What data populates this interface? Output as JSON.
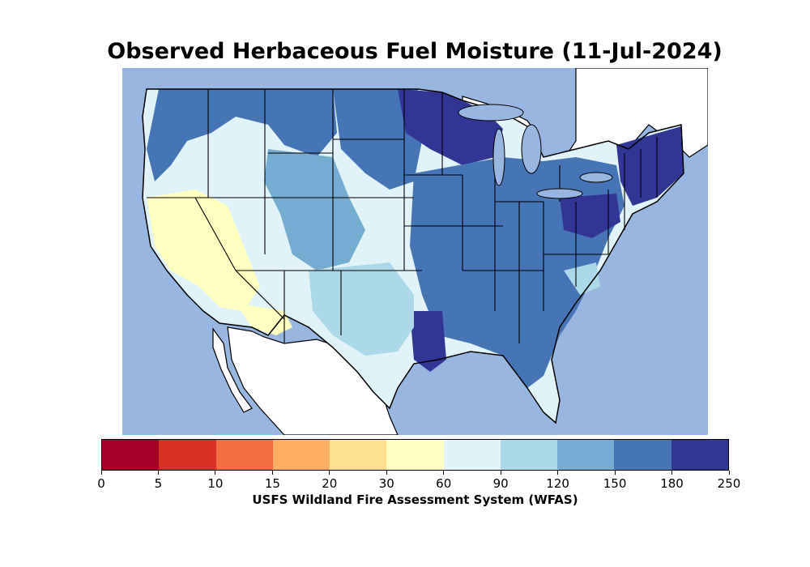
{
  "title": "Observed Herbaceous Fuel Moisture (11-Jul-2024)",
  "colorbar": {
    "label": "USFS Wildland Fire Assessment System (WFAS)",
    "ticks": [
      "0",
      "5",
      "10",
      "15",
      "20",
      "30",
      "60",
      "90",
      "120",
      "150",
      "180",
      "250"
    ],
    "colors": [
      "#a50026",
      "#d73027",
      "#f46d43",
      "#fdae61",
      "#fee090",
      "#ffffbf",
      "#e0f3f8",
      "#abd9e9",
      "#74add1",
      "#4575b4",
      "#313695"
    ]
  },
  "map": {
    "ocean_color": "#97b6e1",
    "land_outside_color": "#ffffff",
    "lakes_color": "#97b6e1"
  }
}
